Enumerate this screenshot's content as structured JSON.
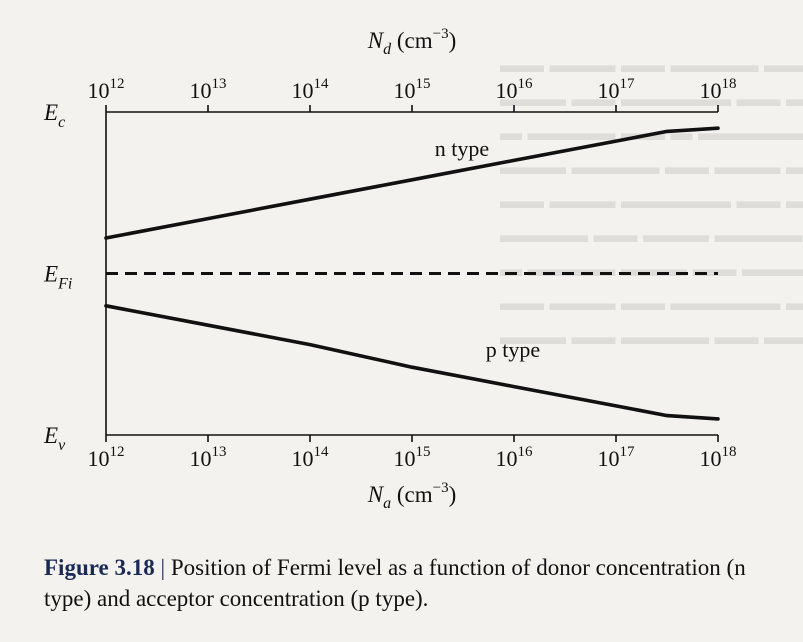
{
  "figure": {
    "label": "Figure 3.18",
    "separator": "|",
    "caption": "Position of Fermi level as a function of donor concentration (n type) and acceptor concentration (p type)."
  },
  "chart_data": {
    "type": "line",
    "top_axis": {
      "var": "N",
      "sub": "d",
      "unit": "(cm",
      "exponents": [
        "12",
        "13",
        "14",
        "15",
        "16",
        "17",
        "18"
      ],
      "scale": "log",
      "range": [
        1000000000000.0,
        1e+18
      ]
    },
    "bottom_axis": {
      "var": "N",
      "sub": "a",
      "unit": "(cm",
      "exponents": [
        "12",
        "13",
        "14",
        "15",
        "16",
        "17",
        "18"
      ],
      "scale": "log",
      "range": [
        1000000000000.0,
        1e+18
      ]
    },
    "unit_exponent": "−3",
    "energy_levels": [
      {
        "key": "Ec",
        "main": "E",
        "sub": "c",
        "value": 1.0
      },
      {
        "key": "EFi",
        "main": "E",
        "sub": "Fi",
        "value": 0.5
      },
      {
        "key": "Ev",
        "main": "E",
        "sub": "v",
        "value": 0.0
      }
    ],
    "ylim": [
      0,
      1
    ],
    "series": [
      {
        "name": "n type",
        "x_log10": [
          12,
          13,
          14,
          15,
          16,
          17,
          17.5,
          18
        ],
        "y": [
          0.61,
          0.67,
          0.73,
          0.79,
          0.85,
          0.91,
          0.94,
          0.95
        ]
      },
      {
        "name": "p type",
        "x_log10": [
          12,
          13,
          14,
          15,
          16,
          17,
          17.5,
          18
        ],
        "y": [
          0.4,
          0.34,
          0.28,
          0.21,
          0.15,
          0.09,
          0.06,
          0.05
        ]
      }
    ],
    "dashed_line": "EFi"
  }
}
